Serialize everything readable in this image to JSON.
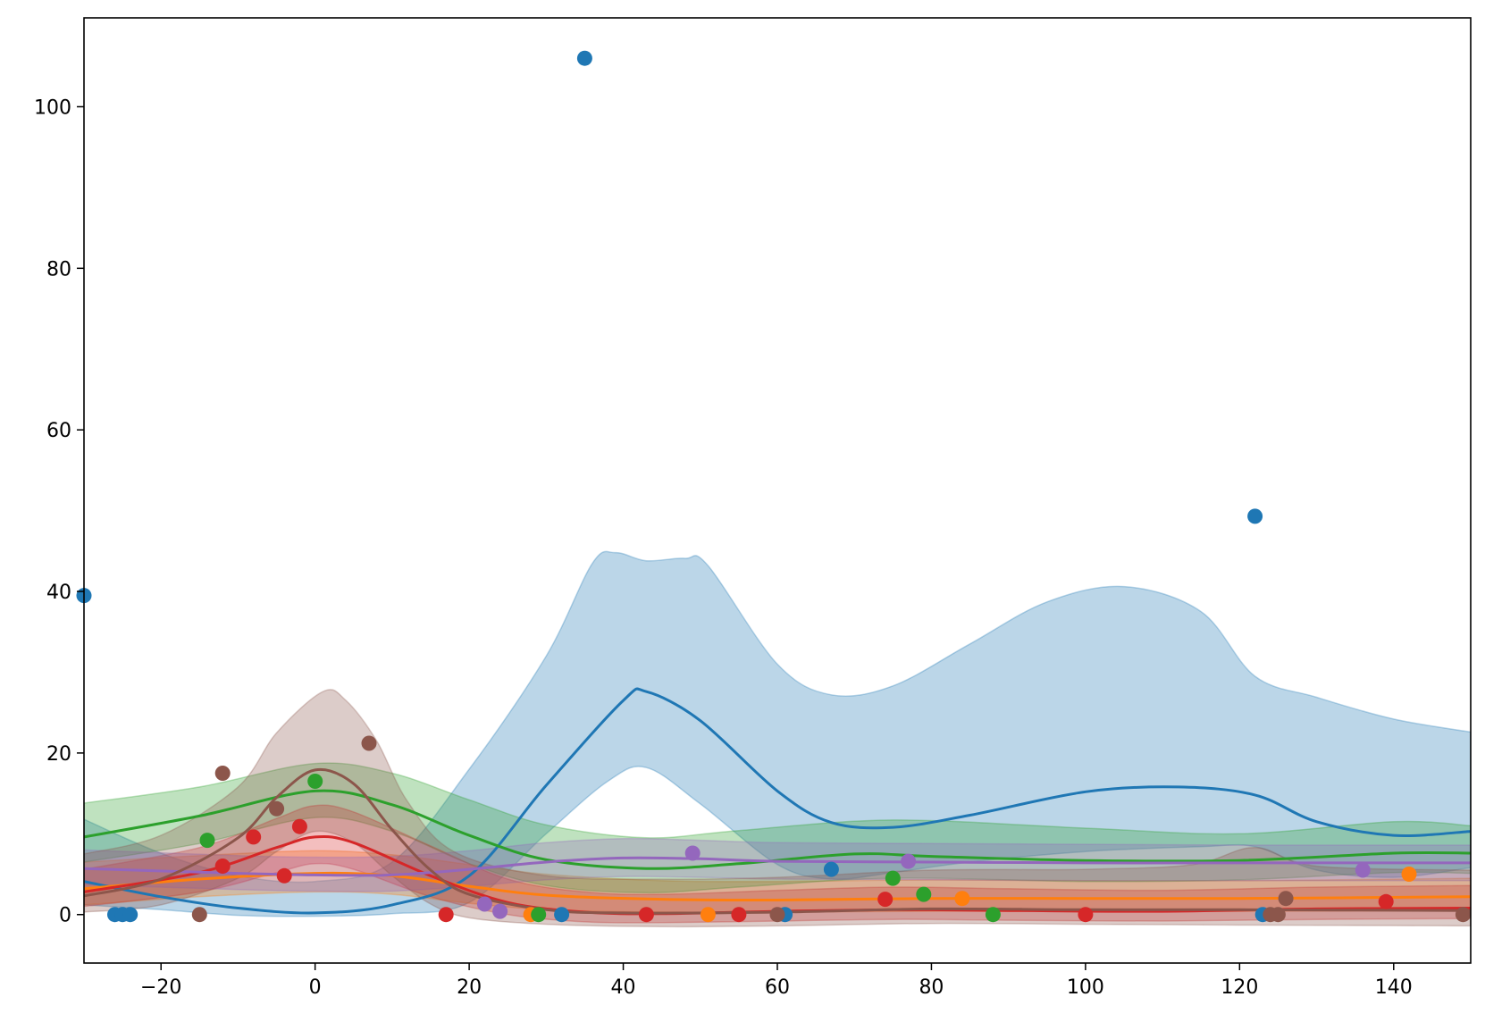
{
  "chart_data": {
    "type": "scatter",
    "title": "",
    "xlabel": "",
    "ylabel": "",
    "xlim": [
      -30,
      150
    ],
    "ylim": [
      -6,
      111
    ],
    "xticks": [
      -20,
      0,
      20,
      40,
      60,
      80,
      100,
      120,
      140
    ],
    "yticks": [
      0,
      20,
      40,
      60,
      80,
      100
    ],
    "xtick_labels": [
      "−20",
      "0",
      "20",
      "40",
      "60",
      "80",
      "100",
      "120",
      "140"
    ],
    "ytick_labels": [
      "0",
      "20",
      "40",
      "60",
      "80",
      "100"
    ],
    "grid": false,
    "legend": "none",
    "series": [
      {
        "color": "#1f77b4",
        "points": [
          [
            -30,
            39.5
          ],
          [
            -26,
            0
          ],
          [
            -25,
            0
          ],
          [
            -24,
            0
          ],
          [
            32,
            0
          ],
          [
            35,
            106
          ],
          [
            61,
            0
          ],
          [
            67,
            5.6
          ],
          [
            122,
            49.3
          ],
          [
            123,
            0
          ]
        ],
        "mean": [
          [
            -30,
            4.1
          ],
          [
            -20,
            2.2
          ],
          [
            -10,
            0.8
          ],
          [
            0,
            0.2
          ],
          [
            10,
            1.2
          ],
          [
            20,
            4.8
          ],
          [
            30,
            16
          ],
          [
            40,
            26.5
          ],
          [
            43,
            27.6
          ],
          [
            50,
            24
          ],
          [
            60,
            15.3
          ],
          [
            67,
            11.4
          ],
          [
            75,
            10.8
          ],
          [
            85,
            12.3
          ],
          [
            100,
            15.2
          ],
          [
            112,
            15.8
          ],
          [
            122,
            14.8
          ],
          [
            130,
            11.5
          ],
          [
            140,
            9.8
          ],
          [
            150,
            10.3
          ]
        ],
        "upper": [
          [
            -30,
            11.8
          ],
          [
            -20,
            7.6
          ],
          [
            -10,
            4.8
          ],
          [
            0,
            4.1
          ],
          [
            10,
            6.5
          ],
          [
            20,
            18
          ],
          [
            30,
            32
          ],
          [
            36,
            43.5
          ],
          [
            39,
            44.8
          ],
          [
            43,
            43.8
          ],
          [
            48,
            44.1
          ],
          [
            51,
            43.2
          ],
          [
            60,
            31
          ],
          [
            67,
            27.2
          ],
          [
            75,
            28.3
          ],
          [
            85,
            33.5
          ],
          [
            95,
            38.7
          ],
          [
            105,
            40.6
          ],
          [
            115,
            37.5
          ],
          [
            122,
            29.5
          ],
          [
            130,
            26.9
          ],
          [
            140,
            24.2
          ],
          [
            150,
            22.6
          ]
        ],
        "lower": [
          [
            -30,
            1.2
          ],
          [
            -20,
            0.6
          ],
          [
            -10,
            -0.1
          ],
          [
            0,
            -0.2
          ],
          [
            10,
            0.1
          ],
          [
            20,
            1.5
          ],
          [
            30,
            10
          ],
          [
            38,
            16.5
          ],
          [
            43,
            18.2
          ],
          [
            50,
            13.7
          ],
          [
            60,
            6.2
          ],
          [
            67,
            4.4
          ],
          [
            75,
            5.2
          ],
          [
            85,
            6.5
          ],
          [
            100,
            7.8
          ],
          [
            115,
            8.4
          ],
          [
            122,
            8.4
          ],
          [
            130,
            5.5
          ],
          [
            140,
            4.6
          ],
          [
            150,
            5.8
          ]
        ]
      },
      {
        "color": "#ff7f0e",
        "points": [
          [
            28,
            0
          ],
          [
            51,
            0
          ],
          [
            84,
            2
          ],
          [
            142,
            5
          ]
        ],
        "mean": [
          [
            -30,
            3.2
          ],
          [
            -15,
            4.4
          ],
          [
            0,
            5.1
          ],
          [
            10,
            4.8
          ],
          [
            20,
            3.5
          ],
          [
            30,
            2.4
          ],
          [
            45,
            1.9
          ],
          [
            60,
            1.8
          ],
          [
            80,
            2
          ],
          [
            100,
            2
          ],
          [
            120,
            2
          ],
          [
            150,
            2.2
          ]
        ],
        "upper": [
          [
            -30,
            6.5
          ],
          [
            -15,
            7.3
          ],
          [
            0,
            7.9
          ],
          [
            10,
            7.4
          ],
          [
            20,
            6.2
          ],
          [
            30,
            5
          ],
          [
            45,
            4.2
          ],
          [
            60,
            4.1
          ],
          [
            80,
            4.3
          ],
          [
            100,
            4.2
          ],
          [
            120,
            4.2
          ],
          [
            150,
            4.5
          ]
        ],
        "lower": [
          [
            -30,
            1.2
          ],
          [
            -15,
            2.2
          ],
          [
            0,
            2.8
          ],
          [
            10,
            2.5
          ],
          [
            20,
            1.4
          ],
          [
            30,
            0.6
          ],
          [
            45,
            0.3
          ],
          [
            60,
            0.3
          ],
          [
            80,
            0.4
          ],
          [
            100,
            0.4
          ],
          [
            120,
            0.4
          ],
          [
            150,
            0.5
          ]
        ]
      },
      {
        "color": "#2ca02c",
        "points": [
          [
            -14,
            9.2
          ],
          [
            0,
            16.5
          ],
          [
            29,
            0
          ],
          [
            75,
            4.5
          ],
          [
            79,
            2.5
          ],
          [
            88,
            0
          ]
        ],
        "mean": [
          [
            -30,
            9.6
          ],
          [
            -15,
            12.2
          ],
          [
            0,
            15.3
          ],
          [
            10,
            13.6
          ],
          [
            20,
            9.8
          ],
          [
            30,
            6.8
          ],
          [
            43,
            5.7
          ],
          [
            55,
            6.3
          ],
          [
            70,
            7.5
          ],
          [
            80,
            7.2
          ],
          [
            100,
            6.7
          ],
          [
            120,
            6.7
          ],
          [
            140,
            7.6
          ],
          [
            150,
            7.6
          ]
        ],
        "upper": [
          [
            -30,
            13.8
          ],
          [
            -15,
            15.8
          ],
          [
            0,
            18.7
          ],
          [
            10,
            17.5
          ],
          [
            20,
            14.2
          ],
          [
            30,
            11.1
          ],
          [
            43,
            9.5
          ],
          [
            55,
            10.4
          ],
          [
            75,
            11.7
          ],
          [
            100,
            10.7
          ],
          [
            120,
            10
          ],
          [
            140,
            11.5
          ],
          [
            150,
            11
          ]
        ],
        "lower": [
          [
            -30,
            6.5
          ],
          [
            -15,
            8.8
          ],
          [
            0,
            12
          ],
          [
            10,
            10.3
          ],
          [
            20,
            6.3
          ],
          [
            30,
            3.6
          ],
          [
            43,
            2.7
          ],
          [
            55,
            3.4
          ],
          [
            75,
            4.5
          ],
          [
            100,
            4.1
          ],
          [
            120,
            4.3
          ],
          [
            140,
            5.2
          ],
          [
            150,
            5.1
          ]
        ]
      },
      {
        "color": "#d62728",
        "points": [
          [
            -12,
            6
          ],
          [
            -8,
            9.6
          ],
          [
            -4,
            4.8
          ],
          [
            -2,
            10.9
          ],
          [
            17,
            0
          ],
          [
            43,
            0
          ],
          [
            55,
            0
          ],
          [
            74,
            1.9
          ],
          [
            100,
            0
          ],
          [
            139,
            1.6
          ]
        ],
        "mean": [
          [
            -30,
            2.8
          ],
          [
            -15,
            5.2
          ],
          [
            -5,
            8.3
          ],
          [
            0,
            9.6
          ],
          [
            5,
            8.9
          ],
          [
            15,
            4.8
          ],
          [
            25,
            1.5
          ],
          [
            35,
            0.3
          ],
          [
            45,
            0.1
          ],
          [
            60,
            0.4
          ],
          [
            75,
            0.6
          ],
          [
            90,
            0.5
          ],
          [
            110,
            0.4
          ],
          [
            130,
            0.7
          ],
          [
            150,
            0.8
          ]
        ],
        "upper": [
          [
            -30,
            5.6
          ],
          [
            -15,
            8.3
          ],
          [
            -5,
            11.9
          ],
          [
            0,
            13.5
          ],
          [
            5,
            12.7
          ],
          [
            15,
            8.5
          ],
          [
            25,
            4.4
          ],
          [
            35,
            2.8
          ],
          [
            45,
            2.5
          ],
          [
            60,
            3
          ],
          [
            75,
            3.4
          ],
          [
            90,
            3.2
          ],
          [
            110,
            3
          ],
          [
            130,
            3.4
          ],
          [
            150,
            3.6
          ]
        ],
        "lower": [
          [
            -30,
            1
          ],
          [
            -15,
            2.8
          ],
          [
            -5,
            5.2
          ],
          [
            0,
            6.3
          ],
          [
            5,
            5.6
          ],
          [
            15,
            2.2
          ],
          [
            25,
            0
          ],
          [
            35,
            -0.9
          ],
          [
            45,
            -1
          ],
          [
            60,
            -0.8
          ],
          [
            75,
            -0.6
          ],
          [
            90,
            -0.7
          ],
          [
            110,
            -0.8
          ],
          [
            130,
            -0.6
          ],
          [
            150,
            -0.5
          ]
        ]
      },
      {
        "color": "#9467bd",
        "points": [
          [
            22,
            1.3
          ],
          [
            24,
            0.4
          ],
          [
            49,
            7.6
          ],
          [
            77,
            6.6
          ],
          [
            136,
            5.5
          ]
        ],
        "mean": [
          [
            -30,
            5.7
          ],
          [
            -10,
            5.1
          ],
          [
            0,
            4.9
          ],
          [
            10,
            4.9
          ],
          [
            20,
            5.6
          ],
          [
            30,
            6.5
          ],
          [
            40,
            7
          ],
          [
            50,
            6.9
          ],
          [
            60,
            6.6
          ],
          [
            80,
            6.5
          ],
          [
            100,
            6.4
          ],
          [
            120,
            6.4
          ],
          [
            150,
            6.4
          ]
        ],
        "upper": [
          [
            -30,
            8
          ],
          [
            -10,
            7.3
          ],
          [
            0,
            7.1
          ],
          [
            10,
            7.2
          ],
          [
            20,
            7.9
          ],
          [
            30,
            8.9
          ],
          [
            40,
            9.4
          ],
          [
            50,
            9.2
          ],
          [
            60,
            8.9
          ],
          [
            80,
            8.8
          ],
          [
            100,
            8.7
          ],
          [
            120,
            8.6
          ],
          [
            150,
            8.6
          ]
        ],
        "lower": [
          [
            -30,
            3.7
          ],
          [
            -10,
            3.1
          ],
          [
            0,
            2.9
          ],
          [
            10,
            2.9
          ],
          [
            20,
            3.5
          ],
          [
            30,
            4.3
          ],
          [
            40,
            4.7
          ],
          [
            50,
            4.6
          ],
          [
            60,
            4.4
          ],
          [
            80,
            4.3
          ],
          [
            100,
            4.2
          ],
          [
            120,
            4.2
          ],
          [
            150,
            4.2
          ]
        ]
      },
      {
        "color": "#8c564b",
        "points": [
          [
            -15,
            0
          ],
          [
            -12,
            17.5
          ],
          [
            -5,
            13.1
          ],
          [
            7,
            21.2
          ],
          [
            60,
            0
          ],
          [
            124,
            0
          ],
          [
            125,
            0
          ],
          [
            126,
            2
          ],
          [
            149,
            0
          ]
        ],
        "mean": [
          [
            -30,
            2.3
          ],
          [
            -20,
            4.4
          ],
          [
            -10,
            9.5
          ],
          [
            -5,
            14.5
          ],
          [
            0,
            17.9
          ],
          [
            5,
            16.2
          ],
          [
            10,
            10.5
          ],
          [
            15,
            5.5
          ],
          [
            20,
            2.5
          ],
          [
            30,
            0.6
          ],
          [
            40,
            0.2
          ],
          [
            60,
            0.3
          ],
          [
            80,
            0.7
          ],
          [
            100,
            0.6
          ],
          [
            120,
            0.6
          ],
          [
            150,
            0.5
          ]
        ],
        "upper": [
          [
            -30,
            7.5
          ],
          [
            -20,
            9.8
          ],
          [
            -10,
            15.8
          ],
          [
            -5,
            22.5
          ],
          [
            1,
            27.6
          ],
          [
            4,
            26.5
          ],
          [
            8,
            21.5
          ],
          [
            12,
            14
          ],
          [
            18,
            7.8
          ],
          [
            30,
            4.8
          ],
          [
            45,
            4.4
          ],
          [
            60,
            4.6
          ],
          [
            80,
            5.5
          ],
          [
            100,
            5.6
          ],
          [
            114,
            6.2
          ],
          [
            122,
            8.3
          ],
          [
            130,
            6
          ],
          [
            150,
            5.5
          ]
        ],
        "lower": [
          [
            -30,
            0.3
          ],
          [
            -20,
            1.2
          ],
          [
            -10,
            4.5
          ],
          [
            -5,
            7.8
          ],
          [
            0,
            10.3
          ],
          [
            5,
            8.9
          ],
          [
            10,
            4.8
          ],
          [
            15,
            1.3
          ],
          [
            20,
            -0.4
          ],
          [
            30,
            -1.2
          ],
          [
            45,
            -1.5
          ],
          [
            60,
            -1.4
          ],
          [
            80,
            -1.1
          ],
          [
            100,
            -1.2
          ],
          [
            120,
            -1.3
          ],
          [
            150,
            -1.4
          ]
        ]
      }
    ]
  }
}
